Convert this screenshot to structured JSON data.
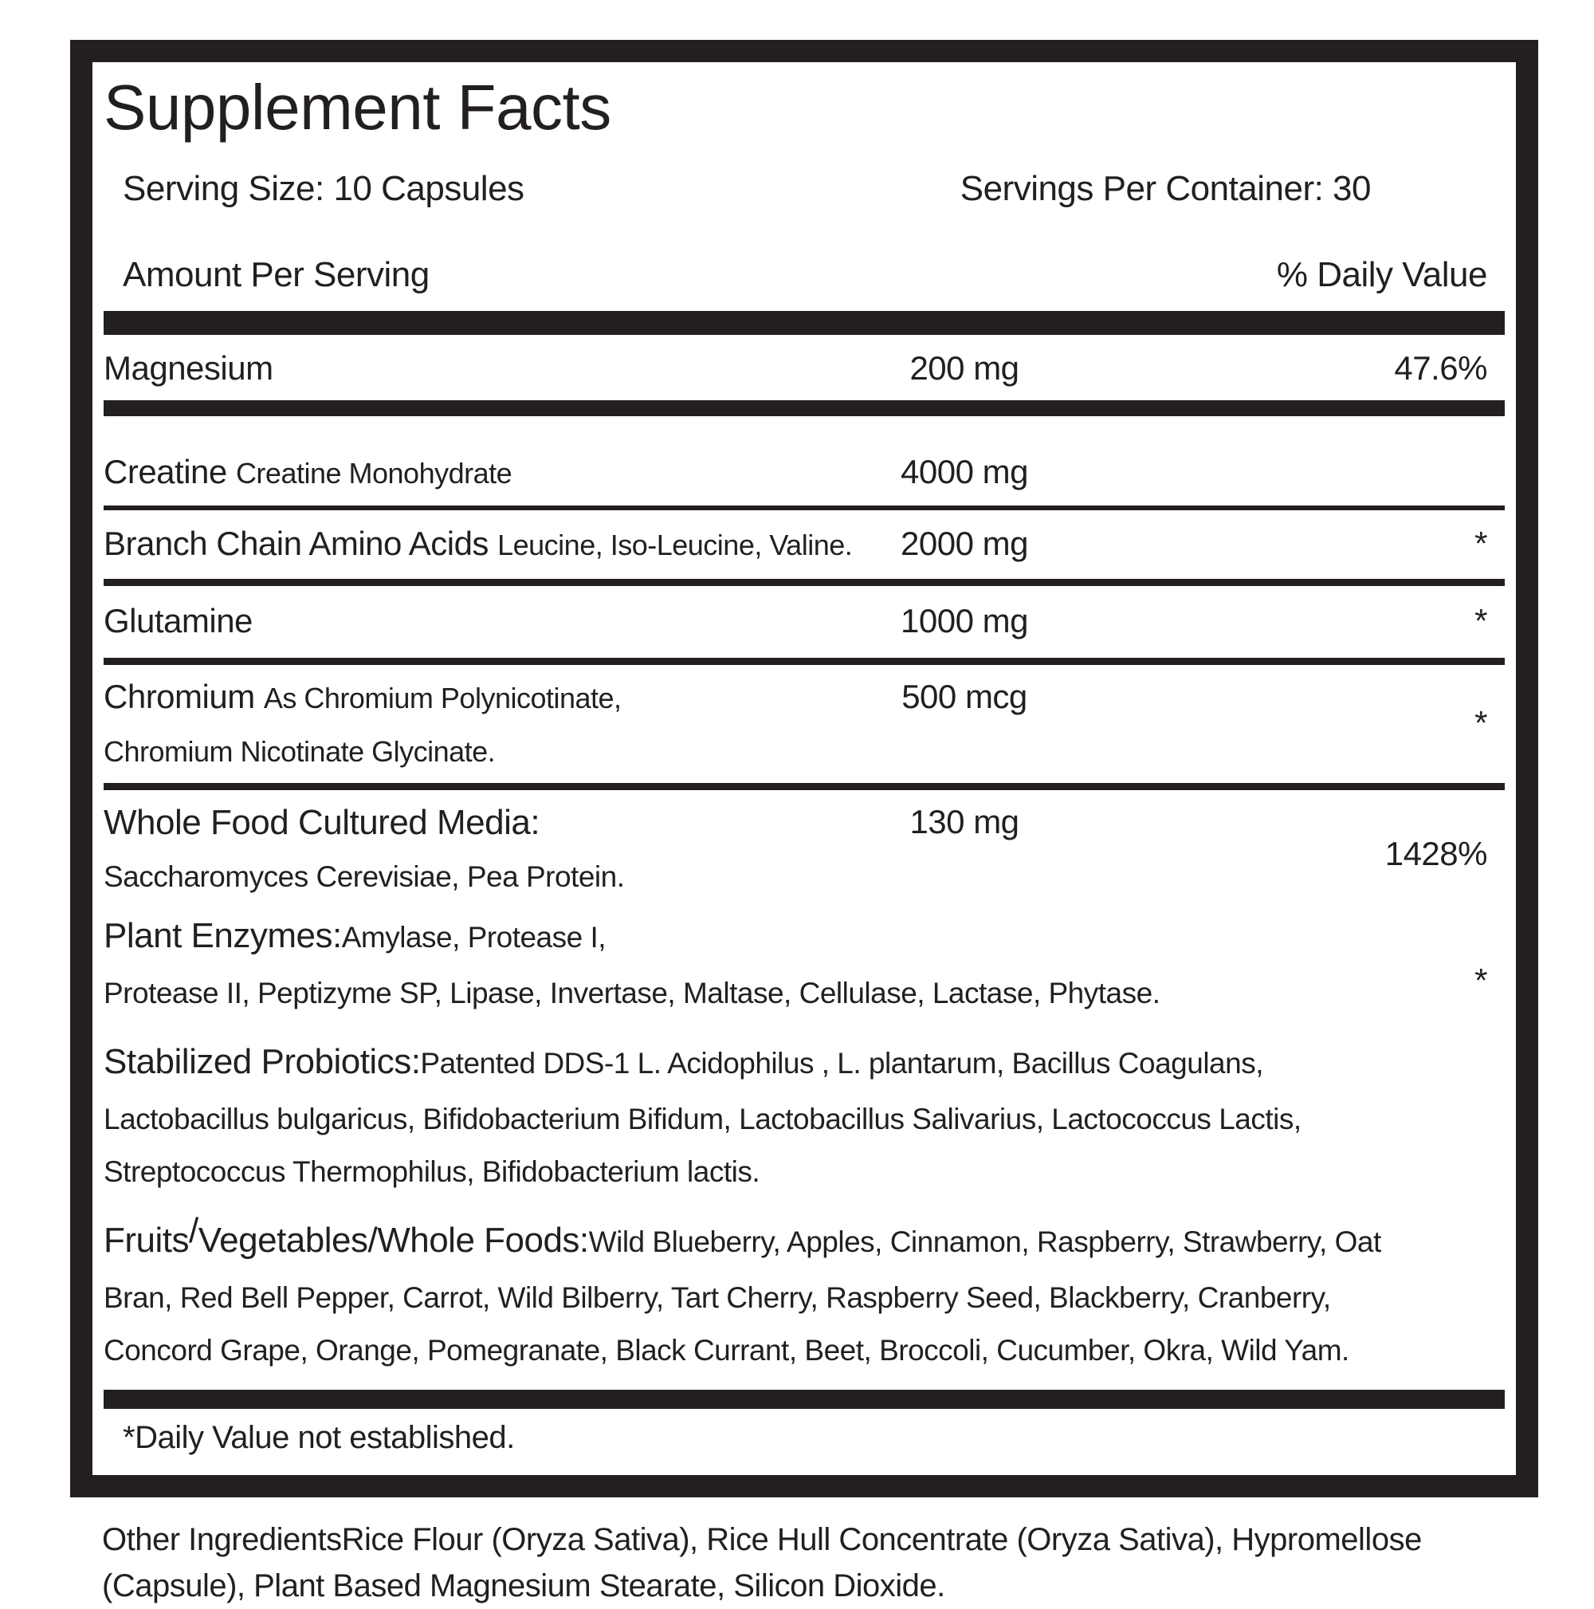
{
  "colors": {
    "ink": "#231f20",
    "paper": "#ffffff"
  },
  "title": "Supplement Facts",
  "serving_size": "Serving Size: 10 Capsules",
  "servings_per_container": "Servings Per Container: 30",
  "amount_per_serving": "Amount Per Serving",
  "daily_value_header": "% Daily Value",
  "rows": [
    {
      "name": "Magnesium",
      "amount": "200 mg",
      "dv": "47.6%"
    },
    {
      "name": "Creatine",
      "detail": "Creatine Monohydrate",
      "amount": "4000 mg",
      "dv": ""
    },
    {
      "name": "Branch Chain Amino Acids",
      "detail": "Leucine, Iso-Leucine, Valine.",
      "amount": "2000 mg",
      "dv": "*"
    },
    {
      "name": "Glutamine",
      "amount": "1000 mg",
      "dv": "*"
    },
    {
      "name": "Chromium",
      "detail": "As Chromium Polynicotinate,",
      "detail_line2": "Chromium Nicotinate Glycinate.",
      "amount": "500 mcg",
      "dv": "*"
    },
    {
      "name": "Whole Food Cultured Media:",
      "amount": "130 mg",
      "dv": "1428%",
      "subtext": "Saccharomyces Cerevisiae, Pea Protein."
    }
  ],
  "plant_enzymes": {
    "label": "Plant Enzymes:",
    "line1": "Amylase, Protease I,",
    "line2": "Protease II, Peptizyme SP, Lipase, Invertase, Maltase, Cellulase, Lactase, Phytase.",
    "dv": "*"
  },
  "probiotics": {
    "label": "Stabilized Probiotics:",
    "line1": "Patented DDS-1 L. Acidophilus , L. plantarum, Bacillus Coagulans,",
    "line2": "Lactobacillus bulgaricus, Bifidobacterium Bifidum, Lactobacillus Salivarius, Lactococcus Lactis,",
    "line3": "Streptococcus Thermophilus, Bifidobacterium lactis."
  },
  "fruits": {
    "label_part1": "Fruits",
    "label_slash": "/",
    "label_part2": "Vegetables/Whole Foods:",
    "line1": "Wild Blueberry, Apples, Cinnamon, Raspberry, Strawberry, Oat",
    "line2": "Bran, Red Bell Pepper, Carrot, Wild Bilberry, Tart Cherry, Raspberry Seed, Blackberry, Cranberry,",
    "line3": "Concord Grape, Orange, Pomegranate, Black Currant, Beet, Broccoli, Cucumber, Okra, Wild Yam."
  },
  "footnote": "*Daily Value not established.",
  "other_ingredients": {
    "label": "Other Ingredients",
    "line1_rest": "Rice Flour (Oryza Sativa), Rice Hull Concentrate (Oryza Sativa), Hypromellose",
    "line2": "(Capsule), Plant Based Magnesium Stearate, Silicon Dioxide."
  }
}
